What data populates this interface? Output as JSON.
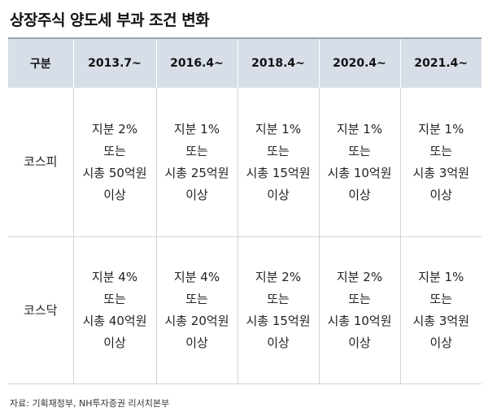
{
  "title": "상장주식 양도세 부과 조건 변화",
  "table": {
    "headers": [
      "구분",
      "2013.7~",
      "2016.4~",
      "2018.4~",
      "2020.4~",
      "2021.4~"
    ],
    "rows": [
      {
        "label": "코스피",
        "cells": [
          [
            "지분 2%",
            "또는",
            "시총 50억원",
            "이상"
          ],
          [
            "지분 1%",
            "또는",
            "시총 25억원",
            "이상"
          ],
          [
            "지분 1%",
            "또는",
            "시총 15억원",
            "이상"
          ],
          [
            "지분 1%",
            "또는",
            "시총 10억원",
            "이상"
          ],
          [
            "지분 1%",
            "또는",
            "시총 3억원",
            "이상"
          ]
        ]
      },
      {
        "label": "코스닥",
        "cells": [
          [
            "지분 4%",
            "또는",
            "시총 40억원",
            "이상"
          ],
          [
            "지분 4%",
            "또는",
            "시총 20억원",
            "이상"
          ],
          [
            "지분 2%",
            "또는",
            "시총 15억원",
            "이상"
          ],
          [
            "지분 2%",
            "또는",
            "시총 10억원",
            "이상"
          ],
          [
            "지분 1%",
            "또는",
            "시총 3억원",
            "이상"
          ]
        ]
      }
    ]
  },
  "source": "자료: 기획재정부, NH투자증권 리서치본부"
}
